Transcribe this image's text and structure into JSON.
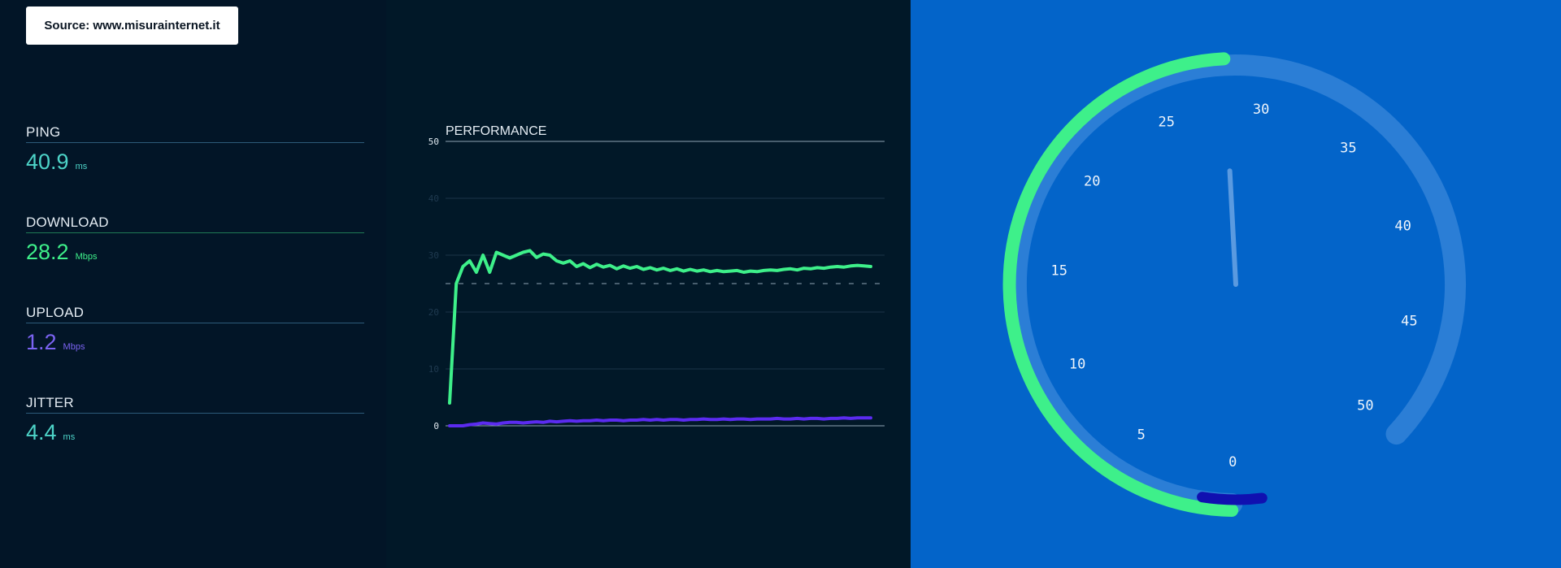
{
  "source": {
    "label": "Source: www.misurainternet.it"
  },
  "metrics": [
    {
      "label": "PING",
      "value": "40.9",
      "unit": "ms",
      "color": "#4dd4c8",
      "line": "#2d5b7a"
    },
    {
      "label": "DOWNLOAD",
      "value": "28.2",
      "unit": "Mbps",
      "color": "#3ef08a",
      "line": "#1f7a55"
    },
    {
      "label": "UPLOAD",
      "value": "1.2",
      "unit": "Mbps",
      "color": "#7b63f2",
      "line": "#2d5b7a"
    },
    {
      "label": "JITTER",
      "value": "4.4",
      "unit": "ms",
      "color": "#4dd4c8",
      "line": "#2d5b7a"
    }
  ],
  "colors": {
    "download": "#3ef08a",
    "upload": "#5b2bf0",
    "gauge_track": "#2b7ed6",
    "gauge_needle": "#5a9ae0",
    "gauge_marker": "#1010b0"
  },
  "chart_data": {
    "type": "line",
    "title": "PERFORMANCE",
    "ylim": [
      0,
      50
    ],
    "yticks": [
      "0",
      "10",
      "20",
      "30",
      "40",
      "50"
    ],
    "reference_line": 25,
    "series": [
      {
        "values": [
          4,
          25,
          28,
          29,
          27,
          30,
          27,
          30.5,
          30,
          29.5,
          30,
          30.5,
          30.8,
          29.6,
          30.2,
          30,
          29,
          28.6,
          29,
          28,
          28.5,
          27.8,
          28.4,
          27.9,
          28.2,
          27.6,
          28.1,
          27.7,
          28,
          27.5,
          27.8,
          27.4,
          27.7,
          27.3,
          27.6,
          27.2,
          27.5,
          27.2,
          27.4,
          27.1,
          27.3,
          27.1,
          27.2,
          27.3,
          27,
          27.2,
          27.1,
          27.3,
          27.4,
          27.3,
          27.5,
          27.6,
          27.4,
          27.7,
          27.6,
          27.8,
          27.7,
          27.9,
          28,
          27.9,
          28.1,
          28.2,
          28.1,
          28
        ],
        "color": "download"
      },
      {
        "values": [
          0,
          0,
          0,
          0.2,
          0.3,
          0.5,
          0.4,
          0.3,
          0.5,
          0.6,
          0.6,
          0.5,
          0.6,
          0.7,
          0.6,
          0.8,
          0.7,
          0.8,
          0.9,
          0.8,
          0.9,
          0.9,
          1,
          0.9,
          1,
          1,
          0.9,
          1,
          1,
          1.1,
          1,
          1.1,
          1,
          1.1,
          1.1,
          1,
          1.1,
          1.1,
          1.2,
          1.1,
          1.1,
          1.2,
          1.1,
          1.2,
          1.2,
          1.1,
          1.2,
          1.2,
          1.2,
          1.3,
          1.2,
          1.2,
          1.3,
          1.2,
          1.3,
          1.3,
          1.2,
          1.3,
          1.3,
          1.4,
          1.3,
          1.4,
          1.4,
          1.4
        ],
        "color": "upload"
      }
    ]
  },
  "gauge": {
    "ticks": [
      "0",
      "5",
      "10",
      "15",
      "20",
      "25",
      "30",
      "35",
      "40",
      "45",
      "50"
    ],
    "download_value": 28.2,
    "upload_value": 1.2,
    "max": 50,
    "needle_value": 28.2
  }
}
